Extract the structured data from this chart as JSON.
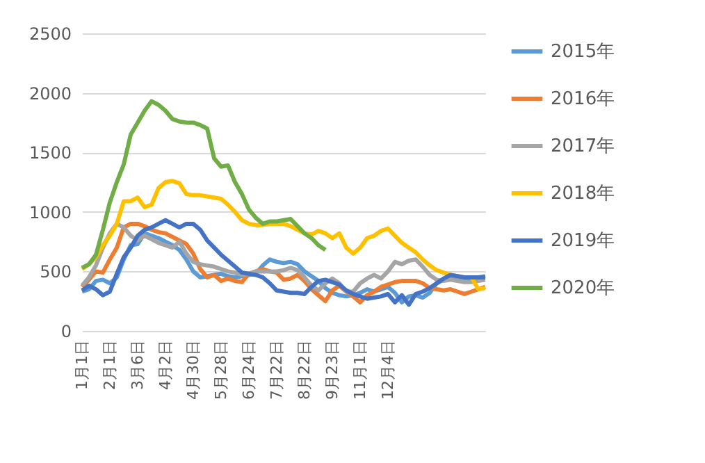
{
  "chart_data": {
    "type": "line",
    "categories": [
      "1月1日",
      null,
      null,
      null,
      "2月1日",
      null,
      null,
      null,
      "3月6日",
      null,
      null,
      null,
      "4月2日",
      null,
      null,
      null,
      "4月30日",
      null,
      null,
      null,
      "5月28日",
      null,
      null,
      null,
      "6月24日",
      null,
      null,
      null,
      "7月22日",
      null,
      null,
      null,
      "8月22日",
      null,
      null,
      null,
      "9月23日",
      null,
      null,
      null,
      "11月1日",
      null,
      null,
      null,
      "12月4日",
      null,
      null,
      null,
      null,
      null,
      null,
      null,
      null,
      null,
      null,
      null,
      null,
      null,
      null
    ],
    "series": [
      {
        "name": "2015年",
        "color": "#5b9bd5",
        "values": [
          330,
          350,
          420,
          430,
          400,
          450,
          600,
          720,
          730,
          820,
          800,
          780,
          750,
          720,
          680,
          600,
          500,
          450,
          460,
          470,
          480,
          460,
          450,
          460,
          470,
          480,
          550,
          600,
          580,
          570,
          580,
          560,
          500,
          460,
          420,
          360,
          320,
          300,
          290,
          300,
          320,
          350,
          330,
          350,
          370,
          320,
          240,
          290,
          300,
          280,
          320,
          400,
          430,
          450,
          440,
          430,
          440,
          450,
          460
        ]
      },
      {
        "name": "2016年",
        "color": "#ed7d31",
        "values": [
          370,
          430,
          500,
          490,
          600,
          700,
          870,
          900,
          900,
          880,
          850,
          830,
          820,
          790,
          760,
          730,
          650,
          520,
          450,
          470,
          420,
          440,
          420,
          410,
          480,
          500,
          520,
          500,
          490,
          430,
          440,
          470,
          420,
          350,
          300,
          250,
          340,
          380,
          330,
          290,
          240,
          300,
          330,
          370,
          390,
          410,
          420,
          420,
          420,
          400,
          360,
          350,
          340,
          350,
          330,
          310,
          330,
          350,
          370
        ]
      },
      {
        "name": "2017年",
        "color": "#a5a5a5",
        "values": [
          380,
          450,
          550,
          700,
          820,
          900,
          870,
          800,
          760,
          800,
          770,
          740,
          720,
          700,
          750,
          650,
          580,
          560,
          550,
          540,
          520,
          500,
          490,
          470,
          480,
          500,
          500,
          500,
          500,
          510,
          530,
          510,
          450,
          380,
          340,
          400,
          440,
          400,
          330,
          330,
          400,
          440,
          470,
          440,
          500,
          580,
          560,
          590,
          600,
          540,
          470,
          430,
          420,
          430,
          420,
          410,
          410,
          420,
          430
        ]
      },
      {
        "name": "2018年",
        "color": "#ffc000",
        "values": [
          520,
          560,
          620,
          720,
          800,
          900,
          1090,
          1090,
          1120,
          1040,
          1060,
          1200,
          1250,
          1260,
          1240,
          1150,
          1140,
          1140,
          1130,
          1120,
          1110,
          1060,
          1000,
          930,
          900,
          890,
          890,
          900,
          900,
          900,
          880,
          850,
          820,
          810,
          840,
          820,
          780,
          820,
          700,
          650,
          700,
          780,
          800,
          840,
          860,
          800,
          740,
          700,
          660,
          600,
          550,
          510,
          490,
          470,
          460,
          450,
          450,
          350,
          360
        ]
      },
      {
        "name": "2019年",
        "color": "#4472c4",
        "values": [
          340,
          380,
          350,
          300,
          330,
          480,
          620,
          700,
          800,
          850,
          870,
          900,
          930,
          900,
          870,
          900,
          900,
          850,
          760,
          700,
          640,
          590,
          540,
          490,
          480,
          470,
          450,
          400,
          340,
          330,
          320,
          320,
          310,
          370,
          420,
          430,
          410,
          390,
          340,
          310,
          290,
          270,
          280,
          290,
          310,
          240,
          300,
          220,
          310,
          330,
          360,
          400,
          440,
          470,
          460,
          450,
          450,
          450,
          450
        ]
      },
      {
        "name": "2020年",
        "color": "#70ad47",
        "values": [
          530,
          560,
          640,
          850,
          1080,
          1250,
          1400,
          1650,
          1750,
          1850,
          1930,
          1900,
          1850,
          1780,
          1760,
          1750,
          1750,
          1730,
          1700,
          1450,
          1380,
          1390,
          1250,
          1150,
          1020,
          950,
          900,
          920,
          920,
          930,
          940,
          880,
          820,
          780,
          720,
          680,
          null,
          null,
          null,
          null,
          null,
          null,
          null,
          null,
          null,
          null,
          null,
          null,
          null,
          null,
          null,
          null,
          null,
          null,
          null,
          null,
          null,
          null,
          null
        ]
      }
    ],
    "ylim": [
      0,
      2500
    ],
    "yticks": [
      0,
      500,
      1000,
      1500,
      2000,
      2500
    ],
    "grid": "y",
    "legend": "right",
    "line_style": "solid",
    "marker": "none"
  }
}
